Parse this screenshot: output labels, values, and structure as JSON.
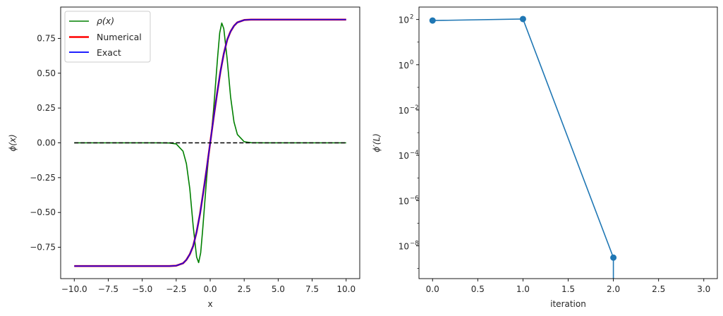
{
  "chart_data": [
    {
      "type": "line",
      "xlabel": "x",
      "ylabel": "ϕ(x)",
      "xlim": [
        -11.0,
        11.0
      ],
      "ylim": [
        -0.975,
        0.975
      ],
      "xticks": [
        -10.0,
        -7.5,
        -5.0,
        -2.5,
        0.0,
        2.5,
        5.0,
        7.5,
        10.0
      ],
      "xtick_labels": [
        "−10.0",
        "−7.5",
        "−5.0",
        "−2.5",
        "0.0",
        "2.5",
        "5.0",
        "7.5",
        "10.0"
      ],
      "yticks": [
        -0.75,
        -0.5,
        -0.25,
        0.0,
        0.25,
        0.5,
        0.75
      ],
      "ytick_labels": [
        "−0.75",
        "−0.50",
        "−0.25",
        "0.00",
        "0.25",
        "0.50",
        "0.75"
      ],
      "grid": false,
      "legend": "top-left",
      "series": [
        {
          "name": "ρ(x)",
          "color": "#008000",
          "x": [
            -10,
            -4,
            -3,
            -2.5,
            -2,
            -1.75,
            -1.5,
            -1.25,
            -1,
            -0.85,
            -0.7,
            -0.55,
            -0.4,
            -0.25,
            -0.1,
            0,
            0.1,
            0.25,
            0.4,
            0.55,
            0.7,
            0.85,
            1,
            1.25,
            1.5,
            1.75,
            2,
            2.5,
            3,
            4,
            10
          ],
          "y": [
            0,
            0,
            -0.001,
            -0.008,
            -0.06,
            -0.15,
            -0.33,
            -0.6,
            -0.82,
            -0.86,
            -0.79,
            -0.62,
            -0.43,
            -0.24,
            -0.08,
            0,
            0.08,
            0.24,
            0.43,
            0.62,
            0.79,
            0.86,
            0.82,
            0.6,
            0.33,
            0.15,
            0.06,
            0.008,
            0.001,
            0,
            0
          ]
        },
        {
          "name": "Numerical",
          "color": "#ff0000",
          "x": [
            -10,
            -4,
            -3,
            -2.5,
            -2,
            -1.75,
            -1.5,
            -1.25,
            -1,
            -0.75,
            -0.5,
            -0.25,
            0,
            0.25,
            0.5,
            0.75,
            1,
            1.25,
            1.5,
            1.75,
            2,
            2.5,
            3,
            4,
            10
          ],
          "y": [
            -0.885,
            -0.885,
            -0.885,
            -0.882,
            -0.865,
            -0.84,
            -0.8,
            -0.74,
            -0.64,
            -0.51,
            -0.35,
            -0.18,
            0,
            0.18,
            0.35,
            0.51,
            0.64,
            0.74,
            0.8,
            0.84,
            0.865,
            0.882,
            0.885,
            0.885,
            0.885
          ]
        },
        {
          "name": "Exact",
          "color": "#0000ff",
          "x": [
            -10,
            -4,
            -3,
            -2.5,
            -2,
            -1.75,
            -1.5,
            -1.25,
            -1,
            -0.75,
            -0.5,
            -0.25,
            0,
            0.25,
            0.5,
            0.75,
            1,
            1.25,
            1.5,
            1.75,
            2,
            2.5,
            3,
            4,
            10
          ],
          "y": [
            -0.885,
            -0.885,
            -0.885,
            -0.882,
            -0.865,
            -0.84,
            -0.8,
            -0.74,
            -0.64,
            -0.51,
            -0.35,
            -0.18,
            0,
            0.18,
            0.35,
            0.51,
            0.64,
            0.74,
            0.8,
            0.84,
            0.865,
            0.882,
            0.885,
            0.885,
            0.885
          ]
        }
      ],
      "reference_line": {
        "y": 0,
        "x_range": [
          -10,
          10
        ],
        "color": "#000000",
        "style": "dashed"
      }
    },
    {
      "type": "line",
      "xlabel": "iteration",
      "ylabel": "ϕ′(L)",
      "yscale": "log",
      "xlim": [
        -0.15,
        3.15
      ],
      "ylim_log10": [
        -9.45,
        2.55
      ],
      "xticks": [
        0.0,
        0.5,
        1.0,
        1.5,
        2.0,
        2.5,
        3.0
      ],
      "xtick_labels": [
        "0.0",
        "0.5",
        "1.0",
        "1.5",
        "2.0",
        "2.5",
        "3.0"
      ],
      "ytick_exponents": [
        2,
        0,
        -2,
        -4,
        -6,
        -8
      ],
      "ytick_base": "10",
      "grid": false,
      "series": [
        {
          "color": "#1f77b4",
          "marker": "circle",
          "x": [
            0,
            1,
            2
          ],
          "y": [
            90,
            105,
            3e-09
          ]
        }
      ],
      "drop_below_axis_at_x": 2
    }
  ]
}
